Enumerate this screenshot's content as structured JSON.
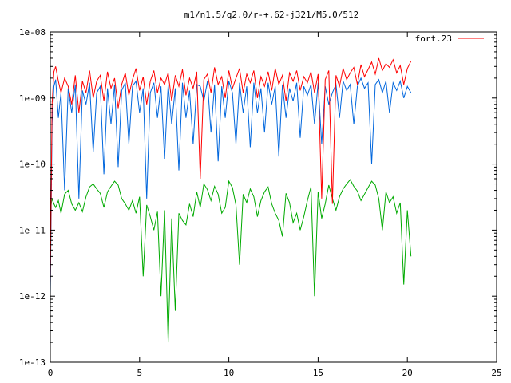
{
  "chart_data": {
    "type": "line",
    "title": "m1/n1.5/q2.0/r-+.62-j321/M5.0/512",
    "xlabel": "",
    "ylabel": "",
    "xlim": [
      0,
      25
    ],
    "ylim": [
      1e-13,
      1e-08
    ],
    "yscale": "log",
    "grid": false,
    "legend_position": "top-right",
    "x_ticks": [
      0,
      5,
      10,
      15,
      20,
      25
    ],
    "x_tick_labels": [
      "0",
      "5",
      "10",
      "15",
      "20",
      "25"
    ],
    "y_ticks": [
      1e-13,
      1e-12,
      1e-11,
      1e-10,
      1e-09,
      1e-08
    ],
    "y_tick_labels": [
      "1e-13",
      "1e-12",
      "1e-11",
      "1e-10",
      "1e-09",
      "1e-08"
    ],
    "series": [
      {
        "name": "fort.23",
        "color": "#ff0000",
        "x": [
          0.0,
          0.1,
          0.2,
          0.3,
          0.45,
          0.6,
          0.8,
          1.0,
          1.2,
          1.4,
          1.6,
          1.8,
          2.0,
          2.2,
          2.4,
          2.6,
          2.8,
          3.0,
          3.2,
          3.4,
          3.6,
          3.8,
          4.0,
          4.2,
          4.4,
          4.6,
          4.8,
          5.0,
          5.2,
          5.4,
          5.6,
          5.8,
          6.0,
          6.2,
          6.4,
          6.6,
          6.8,
          7.0,
          7.2,
          7.4,
          7.6,
          7.8,
          8.0,
          8.2,
          8.4,
          8.6,
          8.8,
          9.0,
          9.2,
          9.4,
          9.6,
          9.8,
          10.0,
          10.2,
          10.4,
          10.6,
          10.8,
          11.0,
          11.2,
          11.4,
          11.6,
          11.8,
          12.0,
          12.2,
          12.4,
          12.6,
          12.8,
          13.0,
          13.2,
          13.4,
          13.6,
          13.8,
          14.0,
          14.2,
          14.4,
          14.6,
          14.8,
          15.0,
          15.2,
          15.4,
          15.6,
          15.8,
          16.0,
          16.2,
          16.4,
          16.6,
          16.8,
          17.0,
          17.2,
          17.4,
          17.6,
          17.8,
          18.0,
          18.2,
          18.4,
          18.6,
          18.8,
          19.0,
          19.2,
          19.4,
          19.6,
          19.8,
          20.0,
          20.2
        ],
        "y": [
          1.5e-12,
          8e-10,
          2.5e-09,
          3e-09,
          1.8e-09,
          1.2e-09,
          2e-09,
          1.5e-09,
          8e-10,
          2.2e-09,
          6e-10,
          1.8e-09,
          1.2e-09,
          2.6e-09,
          1e-09,
          1.8e-09,
          2.2e-09,
          9e-10,
          2.5e-09,
          1.4e-09,
          2e-09,
          7e-10,
          1.6e-09,
          2.4e-09,
          1.1e-09,
          1.9e-09,
          2.8e-09,
          1.3e-09,
          2.1e-09,
          8e-10,
          1.8e-09,
          2.6e-09,
          1.2e-09,
          2e-09,
          1.6e-09,
          2.4e-09,
          9e-10,
          2.2e-09,
          1.5e-09,
          2.7e-09,
          1.1e-09,
          2e-09,
          1.4e-09,
          2.5e-09,
          6e-11,
          1.9e-09,
          2.3e-09,
          1.2e-09,
          2.9e-09,
          1.6e-09,
          2.1e-09,
          1e-09,
          2.6e-09,
          1.4e-09,
          2e-09,
          2.8e-09,
          1.2e-09,
          2.3e-09,
          1.7e-09,
          2.6e-09,
          1e-09,
          2.1e-09,
          1.5e-09,
          2.5e-09,
          1.3e-09,
          2.8e-09,
          1.6e-09,
          2.2e-09,
          9e-10,
          2.4e-09,
          1.8e-09,
          2.6e-09,
          1.3e-09,
          2.1e-09,
          1.7e-09,
          2.5e-09,
          1.2e-09,
          2.3e-09,
          3e-11,
          1.9e-09,
          2.6e-09,
          2.5e-11,
          2.2e-09,
          1.5e-09,
          2.8e-09,
          1.9e-09,
          2.4e-09,
          2.9e-09,
          1.6e-09,
          3.2e-09,
          2.1e-09,
          2.7e-09,
          3.5e-09,
          2.3e-09,
          4e-09,
          2.6e-09,
          3.3e-09,
          2.9e-09,
          3.8e-09,
          2.4e-09,
          3.1e-09,
          1.6e-09,
          2.8e-09,
          3.6e-09
        ]
      },
      {
        "color": "#0066dd",
        "x": [
          0.0,
          0.1,
          0.2,
          0.3,
          0.45,
          0.6,
          0.8,
          1.0,
          1.2,
          1.4,
          1.6,
          1.8,
          2.0,
          2.2,
          2.4,
          2.6,
          2.8,
          3.0,
          3.2,
          3.4,
          3.6,
          3.8,
          4.0,
          4.2,
          4.4,
          4.6,
          4.8,
          5.0,
          5.2,
          5.4,
          5.6,
          5.8,
          6.0,
          6.2,
          6.4,
          6.6,
          6.8,
          7.0,
          7.2,
          7.4,
          7.6,
          7.8,
          8.0,
          8.2,
          8.4,
          8.6,
          8.8,
          9.0,
          9.2,
          9.4,
          9.6,
          9.8,
          10.0,
          10.2,
          10.4,
          10.6,
          10.8,
          11.0,
          11.2,
          11.4,
          11.6,
          11.8,
          12.0,
          12.2,
          12.4,
          12.6,
          12.8,
          13.0,
          13.2,
          13.4,
          13.6,
          13.8,
          14.0,
          14.2,
          14.4,
          14.6,
          14.8,
          15.0,
          15.2,
          15.4,
          15.6,
          15.8,
          16.0,
          16.2,
          16.4,
          16.6,
          16.8,
          17.0,
          17.2,
          17.4,
          17.6,
          17.8,
          18.0,
          18.2,
          18.4,
          18.6,
          18.8,
          19.0,
          19.2,
          19.4,
          19.6,
          19.8,
          20.0,
          20.2
        ],
        "y": [
          1e-12,
          4e-10,
          1.5e-09,
          1.9e-09,
          5e-10,
          1.2e-09,
          4e-11,
          1.4e-09,
          6e-10,
          1.6e-09,
          3e-11,
          1.3e-09,
          8e-10,
          1.7e-09,
          1.5e-10,
          1.2e-09,
          1.5e-09,
          7e-11,
          1.4e-09,
          4e-10,
          1.6e-09,
          9e-11,
          1.3e-09,
          1.7e-09,
          2e-10,
          1.5e-09,
          1.8e-09,
          6e-10,
          1.4e-09,
          3e-11,
          1.2e-09,
          1.7e-09,
          5e-10,
          1.5e-09,
          1.2e-10,
          1.6e-09,
          4e-10,
          1.4e-09,
          8e-11,
          1.7e-09,
          5e-10,
          1.3e-09,
          2e-10,
          1.6e-09,
          1.5e-09,
          9e-10,
          1.8e-09,
          3e-10,
          1.6e-09,
          1.1e-10,
          1.5e-09,
          5e-10,
          1.8e-09,
          1.2e-09,
          2e-10,
          1.7e-09,
          6e-10,
          1.5e-09,
          1.8e-10,
          1.7e-09,
          6e-10,
          1.4e-09,
          3e-10,
          1.7e-09,
          8e-10,
          1.5e-09,
          1.3e-10,
          1.6e-09,
          5e-10,
          1.4e-09,
          9e-10,
          1.7e-09,
          2.5e-10,
          1.5e-09,
          1.1e-09,
          1.6e-09,
          4e-10,
          1.7e-09,
          2e-10,
          1.5e-09,
          8e-10,
          1.2e-09,
          1.6e-09,
          5e-10,
          1.8e-09,
          1.3e-09,
          1.6e-09,
          4e-10,
          1.5e-09,
          2e-09,
          1.4e-09,
          1.7e-09,
          1e-10,
          1.6e-09,
          1.9e-09,
          1.2e-09,
          1.8e-09,
          6e-10,
          1.7e-09,
          1.3e-09,
          1.8e-09,
          1e-09,
          1.5e-09,
          1.2e-09
        ]
      },
      {
        "color": "#00aa00",
        "x": [
          0.0,
          0.1,
          0.2,
          0.3,
          0.45,
          0.6,
          0.8,
          1.0,
          1.2,
          1.4,
          1.6,
          1.8,
          2.0,
          2.2,
          2.4,
          2.6,
          2.8,
          3.0,
          3.2,
          3.4,
          3.6,
          3.8,
          4.0,
          4.2,
          4.4,
          4.6,
          4.8,
          5.0,
          5.2,
          5.4,
          5.6,
          5.8,
          6.0,
          6.2,
          6.4,
          6.6,
          6.8,
          7.0,
          7.2,
          7.4,
          7.6,
          7.8,
          8.0,
          8.2,
          8.4,
          8.6,
          8.8,
          9.0,
          9.2,
          9.4,
          9.6,
          9.8,
          10.0,
          10.2,
          10.4,
          10.6,
          10.8,
          11.0,
          11.2,
          11.4,
          11.6,
          11.8,
          12.0,
          12.2,
          12.4,
          12.6,
          12.8,
          13.0,
          13.2,
          13.4,
          13.6,
          13.8,
          14.0,
          14.2,
          14.4,
          14.6,
          14.8,
          15.0,
          15.2,
          15.4,
          15.6,
          15.8,
          16.0,
          16.2,
          16.4,
          16.6,
          16.8,
          17.0,
          17.2,
          17.4,
          17.6,
          17.8,
          18.0,
          18.2,
          18.4,
          18.6,
          18.8,
          19.0,
          19.2,
          19.4,
          19.6,
          19.8,
          20.0,
          20.2
        ],
        "y": [
          2e-11,
          3e-11,
          2.5e-11,
          2.2e-11,
          2.8e-11,
          1.8e-11,
          3.5e-11,
          4e-11,
          2.5e-11,
          2e-11,
          2.6e-11,
          1.9e-11,
          3.2e-11,
          4.5e-11,
          5e-11,
          4.2e-11,
          3.6e-11,
          2.2e-11,
          3.8e-11,
          4.6e-11,
          5.5e-11,
          4.8e-11,
          3e-11,
          2.5e-11,
          2e-11,
          2.8e-11,
          1.8e-11,
          3.2e-11,
          2e-12,
          2.4e-11,
          1.6e-11,
          1e-11,
          1.9e-11,
          1e-12,
          2e-11,
          2e-13,
          1.5e-11,
          6e-13,
          1.8e-11,
          1.4e-11,
          1.2e-11,
          2.5e-11,
          1.6e-11,
          3.8e-11,
          2.2e-11,
          5e-11,
          4.1e-11,
          2.8e-11,
          4.6e-11,
          3.5e-11,
          1.8e-11,
          2.2e-11,
          5.5e-11,
          4.4e-11,
          2.4e-11,
          3e-12,
          3.5e-11,
          2.6e-11,
          4.2e-11,
          3.2e-11,
          1.6e-11,
          2.8e-11,
          3.8e-11,
          4.5e-11,
          2.5e-11,
          1.8e-11,
          1.4e-11,
          8e-12,
          3.6e-11,
          2.6e-11,
          1.3e-11,
          1.8e-11,
          1e-11,
          1.6e-11,
          2.8e-11,
          4.5e-11,
          1e-12,
          3.8e-11,
          1.5e-11,
          2.5e-11,
          4.8e-11,
          3e-11,
          2e-11,
          3.2e-11,
          4.2e-11,
          5e-11,
          5.8e-11,
          4.6e-11,
          3.9e-11,
          2.8e-11,
          3.5e-11,
          4.4e-11,
          5.5e-11,
          4.8e-11,
          3e-11,
          1e-11,
          3.8e-11,
          2.6e-11,
          3.2e-11,
          1.8e-11,
          2.6e-11,
          1.5e-12,
          2e-11,
          4e-12
        ]
      }
    ]
  }
}
